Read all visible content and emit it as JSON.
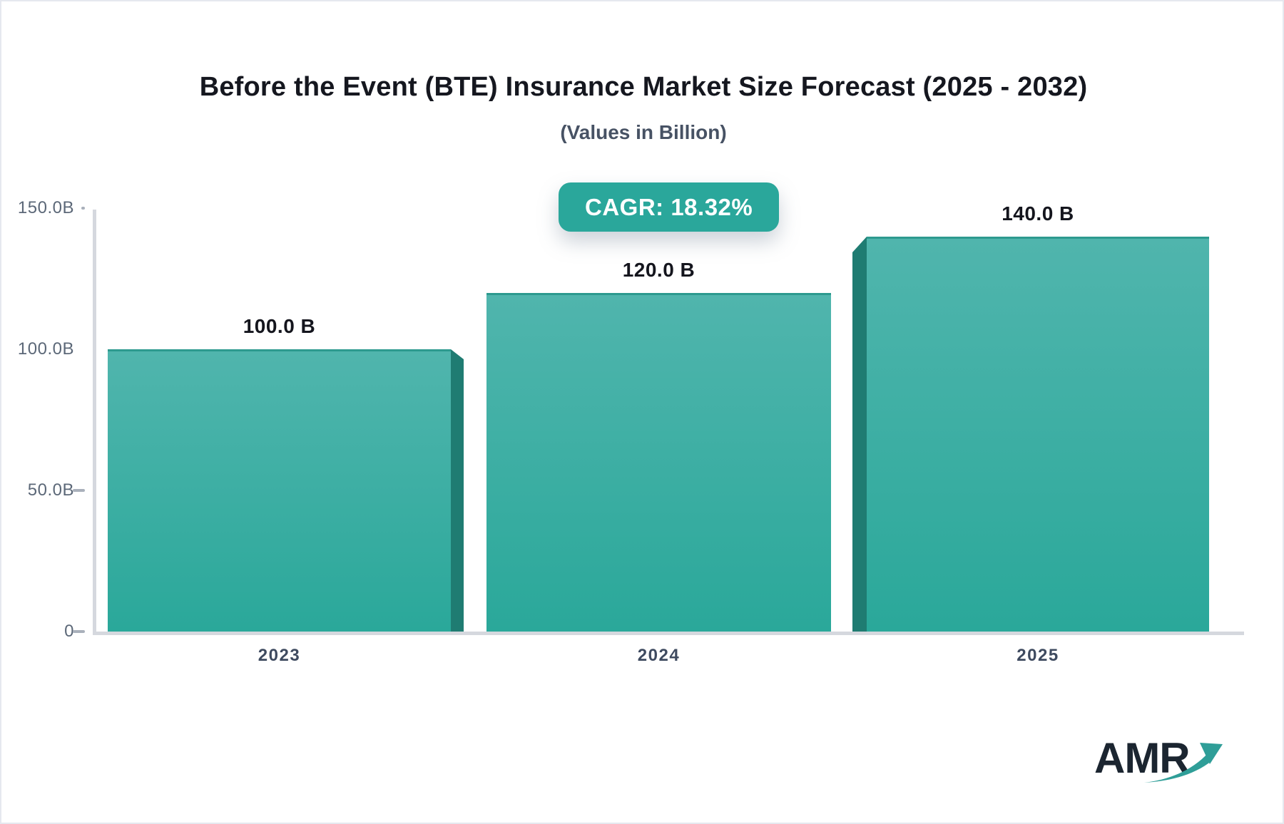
{
  "chart_data": {
    "type": "bar",
    "title": "Before the Event (BTE) Insurance Market Size Forecast (2025 - 2032)",
    "subtitle": "(Values in Billion)",
    "badge_label": "CAGR: 18.32%",
    "categories": [
      "2023",
      "2024",
      "2025"
    ],
    "values": [
      100.0,
      120.0,
      140.0
    ],
    "value_labels": [
      "100.0 B",
      "120.0 B",
      "140.0 B"
    ],
    "unit": "Billion",
    "xlabel": "",
    "ylabel": "",
    "ylim": [
      0,
      150
    ],
    "yticks": [
      "150.0B",
      "100.0B",
      "50.0B",
      "0"
    ],
    "grid": false,
    "legend": "none",
    "colors": {
      "bar_top": "#50b5ad",
      "bar_bottom": "#2aa89a",
      "bar_edge_3d": "#1f7c72",
      "accent": "#2aa79b",
      "axis": "#d5d8de"
    }
  },
  "logo": {
    "text": "AMR",
    "icon": "growth-arrow"
  }
}
